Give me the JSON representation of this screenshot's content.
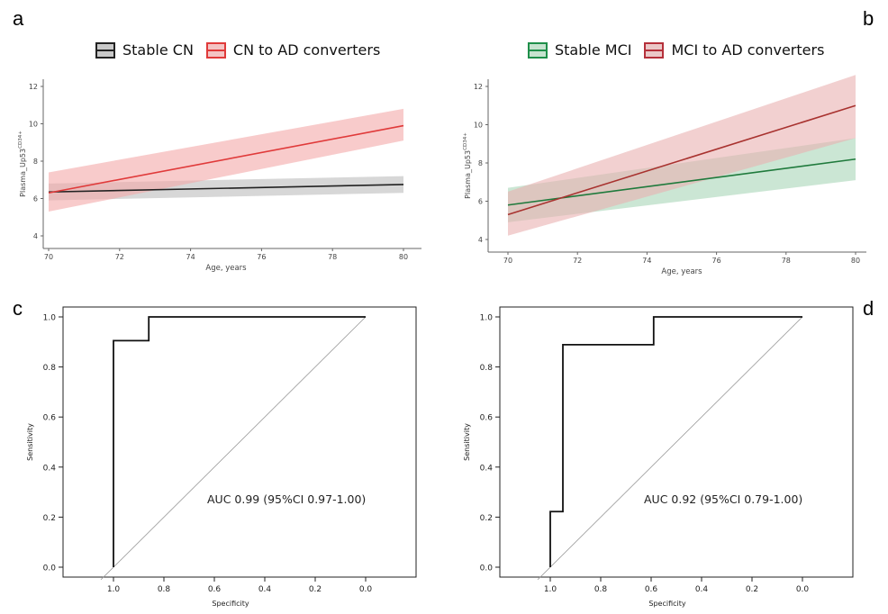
{
  "panels": {
    "a": "a",
    "b": "b",
    "c": "c",
    "d": "d"
  },
  "legend_a": [
    {
      "label": "Stable CN",
      "color": "#222222",
      "fill": "#c9c9c9"
    },
    {
      "label": "CN to AD converters",
      "color": "#e03a3a",
      "fill": "#f4c4c4"
    }
  ],
  "legend_b": [
    {
      "label": "Stable MCI",
      "color": "#1f8f4a",
      "fill": "#c6e3cf"
    },
    {
      "label": "MCI to AD converters",
      "color": "#b5303a",
      "fill": "#ebc8c8"
    }
  ],
  "chart_data": [
    {
      "type": "line",
      "panel": "a",
      "xlabel": "Age, years",
      "ylabel": "Plasma_Up53",
      "ylabel_sup": "CD34+",
      "xlim": [
        70,
        80
      ],
      "ylim": [
        4,
        12
      ],
      "xticks": [
        70,
        72,
        74,
        76,
        78,
        80
      ],
      "yticks": [
        4,
        6,
        8,
        10,
        12
      ],
      "series": [
        {
          "name": "Stable CN",
          "color": "#222222",
          "band_color": "#bdbdbd",
          "x": [
            70,
            80
          ],
          "y": [
            6.35,
            6.75
          ],
          "lower": [
            5.9,
            6.3
          ],
          "upper": [
            6.8,
            7.2
          ]
        },
        {
          "name": "CN to AD converters",
          "color": "#e03a3a",
          "band_color": "#f3a9a9",
          "x": [
            70,
            80
          ],
          "y": [
            6.3,
            9.9
          ],
          "lower": [
            5.3,
            9.1
          ],
          "upper": [
            7.4,
            10.8
          ]
        }
      ]
    },
    {
      "type": "line",
      "panel": "b",
      "xlabel": "Age, years",
      "ylabel": "Plasma_Up53",
      "ylabel_sup": "CD34+",
      "xlim": [
        70,
        80
      ],
      "ylim": [
        4,
        12
      ],
      "xticks": [
        70,
        72,
        74,
        76,
        78,
        80
      ],
      "yticks": [
        4,
        6,
        8,
        10,
        12
      ],
      "series": [
        {
          "name": "Stable MCI",
          "color": "#1f7a3c",
          "band_color": "#a9d6b7",
          "x": [
            70,
            80
          ],
          "y": [
            5.8,
            8.2
          ],
          "lower": [
            4.9,
            7.1
          ],
          "upper": [
            6.7,
            9.3
          ]
        },
        {
          "name": "MCI to AD converters",
          "color": "#a8322f",
          "band_color": "#e9b0b0",
          "x": [
            70,
            80
          ],
          "y": [
            5.3,
            11.0
          ],
          "lower": [
            4.2,
            9.3
          ],
          "upper": [
            6.5,
            12.6
          ]
        }
      ]
    },
    {
      "type": "line",
      "panel": "c",
      "xlabel": "Specificity",
      "ylabel": "Sensitivity",
      "xlim": [
        1.2,
        -0.2
      ],
      "ylim": [
        0,
        1
      ],
      "xticks": [
        "1.0",
        "0.8",
        "0.6",
        "0.4",
        "0.2",
        "0.0"
      ],
      "yticks": [
        "0.0",
        "0.2",
        "0.4",
        "0.6",
        "0.8",
        "1.0"
      ],
      "annotation": "AUC 0.99 (95%CI 0.97-1.00)",
      "roc": {
        "specificity": [
          1.0,
          1.0,
          0.86,
          0.86,
          0.0
        ],
        "sensitivity": [
          0.0,
          0.905,
          0.905,
          1.0,
          1.0
        ]
      }
    },
    {
      "type": "line",
      "panel": "d",
      "xlabel": "Specificity",
      "ylabel": "Sensitivity",
      "xlim": [
        1.2,
        -0.2
      ],
      "ylim": [
        0,
        1
      ],
      "xticks": [
        "1.0",
        "0.8",
        "0.6",
        "0.4",
        "0.2",
        "0.0"
      ],
      "yticks": [
        "0.0",
        "0.2",
        "0.4",
        "0.6",
        "0.8",
        "1.0"
      ],
      "annotation": "AUC 0.92 (95%CI 0.79-1.00)",
      "roc": {
        "specificity": [
          1.0,
          1.0,
          0.95,
          0.95,
          0.59,
          0.59,
          0.0
        ],
        "sensitivity": [
          0.0,
          0.222,
          0.222,
          0.889,
          0.889,
          1.0,
          1.0
        ]
      }
    }
  ]
}
